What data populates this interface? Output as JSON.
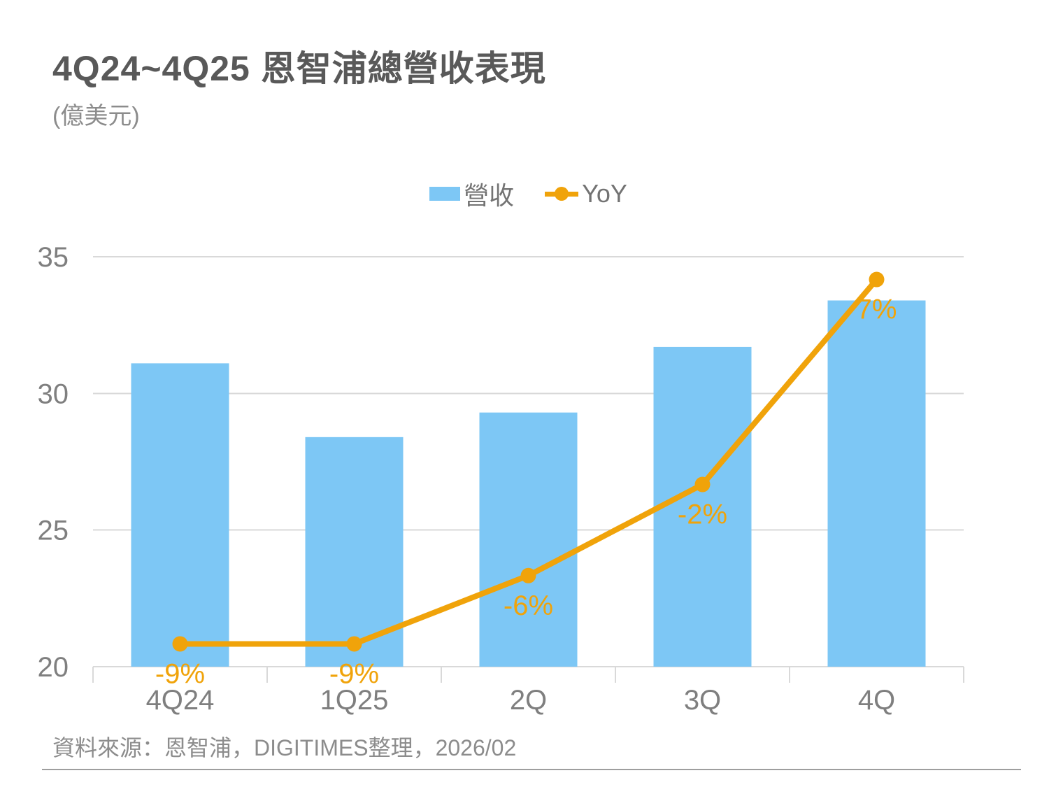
{
  "header": {
    "title": "4Q24~4Q25 恩智浦總營收表現",
    "unit": "(億美元)"
  },
  "legend": {
    "revenue_label": "營收",
    "yoy_label": "YoY"
  },
  "footer": {
    "source": "資料來源：恩智浦，DIGITIMES整理，2026/02"
  },
  "colors": {
    "bar": "#7dc7f5",
    "line": "#f0a30a",
    "title_text": "#595959",
    "axis_text": "#7f7f7f",
    "legend_text": "#737373",
    "data_label": "#f0a30a",
    "grid": "#d9d9d9",
    "source_text": "#8c8c8c"
  },
  "chart_data": {
    "type": "bar+line",
    "title": "4Q24~4Q25 恩智浦總營收表現",
    "unit": "(億美元)",
    "categories": [
      "4Q24",
      "1Q25",
      "2Q",
      "3Q",
      "4Q"
    ],
    "series": [
      {
        "name": "營收",
        "type": "bar",
        "values": [
          31.1,
          28.4,
          29.3,
          31.7,
          33.4
        ]
      },
      {
        "name": "YoY",
        "type": "line",
        "values": [
          -9,
          -9,
          -6,
          -2,
          7
        ],
        "labels": [
          "-9%",
          "-9%",
          "-6%",
          "-2%",
          "7%"
        ]
      }
    ],
    "value_axis": {
      "min": 20,
      "max": 35,
      "ticks": [
        35,
        30,
        25,
        20
      ]
    },
    "secondary_axis": {
      "min": -10,
      "max": 8,
      "visible": false
    },
    "grid": true,
    "legend_position": "top"
  }
}
